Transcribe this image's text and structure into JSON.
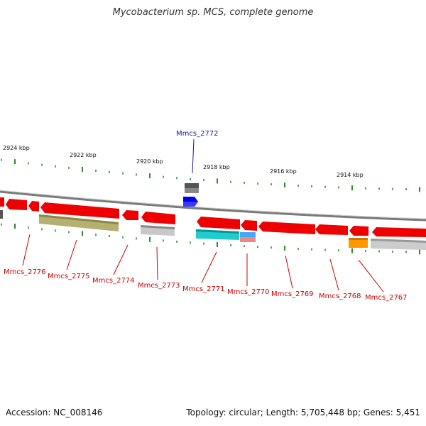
{
  "title": "Mycobacterium sp. MCS, complete genome",
  "accession": "Accession: NC_008146",
  "summary": "Topology: circular; Length: 5,705,448 bp; Genes: 5,451",
  "colors": {
    "forward_gene": "#ff0000",
    "selected_gene": "#0000ff",
    "ticks": "#2e8b2e",
    "backbone": "#888888",
    "label_line": "#cc0000"
  },
  "scale_labels": [
    "2924 kbp",
    "2922 kbp",
    "2920 kbp",
    "2918 kbp",
    "2916 kbp",
    "2914 kbp"
  ],
  "selected_gene": "Mmcs_2772",
  "gene_labels": [
    "Mmcs_2776",
    "Mmcs_2775",
    "Mmcs_2774",
    "Mmcs_2773",
    "Mmcs_2771",
    "Mmcs_2770",
    "Mmcs_2769",
    "Mmcs_2768",
    "Mmcs_2767"
  ]
}
